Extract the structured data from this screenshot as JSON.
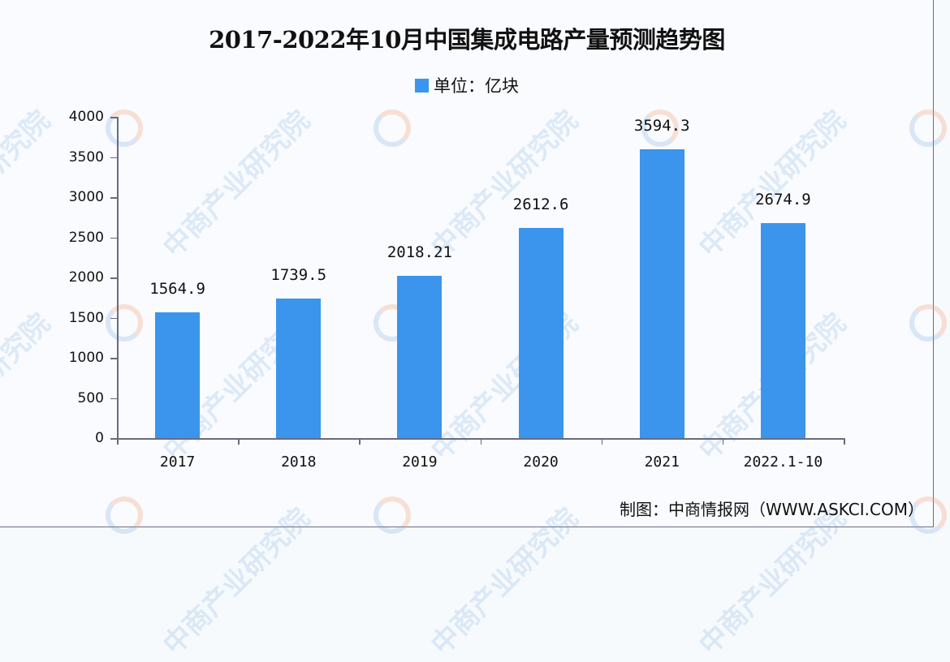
{
  "title": "2017-2022年10月中国集成电路产量预测趋势图",
  "legend": {
    "label": "单位：亿块",
    "color": "#3b95ec"
  },
  "source": "制图：中商情报网（WWW.ASKCI.COM）",
  "watermark": "中商产业研究院",
  "chart_data": {
    "type": "bar",
    "title": "2017-2022年10月中国集成电路产量预测趋势图",
    "xlabel": "",
    "ylabel": "单位：亿块",
    "categories": [
      "2017",
      "2018",
      "2019",
      "2020",
      "2021",
      "2022.1-10"
    ],
    "values": [
      1564.9,
      1739.5,
      2018.21,
      2612.6,
      3594.3,
      2674.9
    ],
    "value_labels": [
      "1564.9",
      "1739.5",
      "2018.21",
      "2612.6",
      "3594.3",
      "2674.9"
    ],
    "yticks": [
      "0",
      "500",
      "1000",
      "1500",
      "2000",
      "2500",
      "3000",
      "3500",
      "4000"
    ],
    "ylim": [
      0,
      4000
    ],
    "grid": false,
    "legend_position": "top",
    "bar_color": "#3b95ec"
  }
}
